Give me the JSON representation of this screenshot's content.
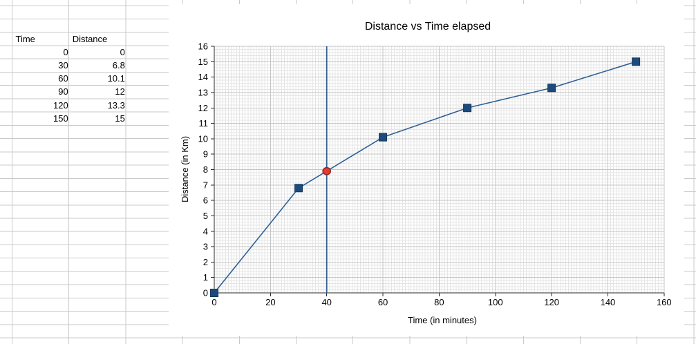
{
  "sheet": {
    "table": {
      "col1_header": "Time",
      "col2_header": "Distance",
      "rows": [
        {
          "time": "0",
          "distance": "0"
        },
        {
          "time": "30",
          "distance": "6.8"
        },
        {
          "time": "60",
          "distance": "10.1"
        },
        {
          "time": "90",
          "distance": "12"
        },
        {
          "time": "120",
          "distance": "13.3"
        },
        {
          "time": "150",
          "distance": "15"
        }
      ]
    },
    "gridline_color": "#c9c9c9"
  },
  "chart_data": {
    "type": "line",
    "title": "Distance vs Time elapsed",
    "xlabel": "Time (in minutes)",
    "ylabel": "Distance (in Km)",
    "x": [
      0,
      30,
      60,
      90,
      120,
      150
    ],
    "y": [
      0,
      6.8,
      10.1,
      12,
      13.3,
      15
    ],
    "xlim": [
      0,
      160
    ],
    "ylim": [
      0,
      16
    ],
    "x_tick_step": 20,
    "y_tick_step": 1,
    "x_minor_step": 1,
    "y_minor_step": 0.2,
    "grid": "major+minor",
    "legend": "none",
    "marker": "square",
    "vertical_line_x": 40,
    "highlight_point": {
      "x": 40,
      "y": 7.9
    },
    "colors": {
      "series_line": "#2e6094",
      "marker_fill": "#1d4a7a",
      "marker_stroke": "#143a60",
      "vertical_line": "#2e5f91",
      "highlight_fill": "#e23b35",
      "highlight_stroke": "#932621",
      "axis": "#2a2a2a",
      "major_grid": "#c4c4c4",
      "minor_grid": "#e5e5e5"
    }
  }
}
